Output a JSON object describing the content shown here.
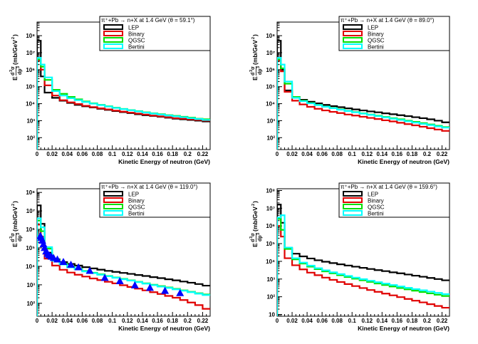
{
  "figure": {
    "x_axis_label": "Kinetic Energy of neutron (GeV)",
    "y_axis_label": "E d³σ / dp³ (mb/GeV²)"
  },
  "chart_data": [
    {
      "type": "line",
      "title": "π⁺+Pb → n+X at 1.4 GeV (θ =  59.1°)",
      "xlabel": "Kinetic Energy of neutron (GeV)",
      "ylabel": "E d³σ / dp³ (mb/GeV²)",
      "xlim": [
        0,
        0.23
      ],
      "ylim_log10": [
        1.3,
        8.8
      ],
      "x_ticks": [
        "0",
        "0.02",
        "0.04",
        "0.06",
        "0.08",
        "0.1",
        "0.12",
        "0.14",
        "0.16",
        "0.18",
        "0.2",
        "0.22"
      ],
      "y_ticks": [
        {
          "exp": 2,
          "label": "10²"
        },
        {
          "exp": 3,
          "label": "10³"
        },
        {
          "exp": 4,
          "label": "10⁴"
        },
        {
          "exp": 5,
          "label": "10⁵"
        },
        {
          "exp": 6,
          "label": "10⁶"
        },
        {
          "exp": 7,
          "label": "10⁷"
        },
        {
          "exp": 8,
          "label": "10⁸"
        }
      ],
      "legend_placement": "top-right",
      "bin_edges": [
        0,
        0.005,
        0.01,
        0.02,
        0.03,
        0.04,
        0.05,
        0.06,
        0.07,
        0.08,
        0.09,
        0.1,
        0.11,
        0.12,
        0.13,
        0.14,
        0.15,
        0.16,
        0.17,
        0.18,
        0.19,
        0.2,
        0.21,
        0.22,
        0.23
      ],
      "series": [
        {
          "name": "LEP",
          "color": "#000000",
          "values": [
            50000000.0,
            400000.0,
            45000.0,
            22000.0,
            15000.0,
            11000.0,
            8500.0,
            7000.0,
            6000.0,
            5000.0,
            4300.0,
            3700.0,
            3200.0,
            2800.0,
            2400.0,
            2100.0,
            1900.0,
            1700.0,
            1500.0,
            1300.0,
            1200.0,
            1100.0,
            1000.0,
            900.0
          ]
        },
        {
          "name": "Binary",
          "color": "#e00000",
          "values": [
            3500000.0,
            1000000.0,
            120000.0,
            30000.0,
            16000.0,
            12000.0,
            9500.0,
            7500.0,
            6300.0,
            5300.0,
            4600.0,
            3900.0,
            3400.0,
            3000.0,
            2600.0,
            2300.0,
            2000.0,
            1800.0,
            1600.0,
            1400.0,
            1300.0,
            1200.0,
            1100.0,
            1000.0
          ]
        },
        {
          "name": "QGSC",
          "color": "#00e000",
          "values": [
            4000000.0,
            1500000.0,
            250000.0,
            65000.0,
            38000.0,
            25000.0,
            18000.0,
            13500.0,
            10500.0,
            8500.0,
            7000.0,
            5800.0,
            4900.0,
            4200.0,
            3600.0,
            3100.0,
            2700.0,
            2400.0,
            2100.0,
            1900.0,
            1700.0,
            1500.0,
            1300.0,
            1200.0
          ]
        },
        {
          "name": "Bertini",
          "color": "#00ffff",
          "values": [
            5000000.0,
            2000000.0,
            350000.0,
            55000.0,
            30000.0,
            21000.0,
            16000.0,
            12500.0,
            10000.0,
            8200.0,
            6800.0,
            5600.0,
            4800.0,
            4100.0,
            3500.0,
            3000.0,
            2600.0,
            2300.0,
            2000.0,
            1800.0,
            1600.0,
            1400.0,
            1250.0,
            1100.0
          ]
        }
      ]
    },
    {
      "type": "line",
      "title": "π⁺+Pb → n+X at 1.4 GeV (θ =  89.0°)",
      "xlabel": "Kinetic Energy of neutron (GeV)",
      "ylabel": "E d³σ / dp³ (mb/GeV²)",
      "xlim": [
        0,
        0.23
      ],
      "ylim_log10": [
        1.3,
        8.8
      ],
      "x_ticks": [
        "0",
        "0.02",
        "0.04",
        "0.06",
        "0.08",
        "0.1",
        "0.12",
        "0.14",
        "0.16",
        "0.18",
        "0.2",
        "0.22"
      ],
      "y_ticks": [
        {
          "exp": 2,
          "label": "10²"
        },
        {
          "exp": 3,
          "label": "10³"
        },
        {
          "exp": 4,
          "label": "10⁴"
        },
        {
          "exp": 5,
          "label": "10⁵"
        },
        {
          "exp": 6,
          "label": "10⁶"
        },
        {
          "exp": 7,
          "label": "10⁷"
        },
        {
          "exp": 8,
          "label": "10⁸"
        }
      ],
      "legend_placement": "top-right",
      "bin_edges": [
        0,
        0.005,
        0.01,
        0.02,
        0.03,
        0.04,
        0.05,
        0.06,
        0.07,
        0.08,
        0.09,
        0.1,
        0.11,
        0.12,
        0.13,
        0.14,
        0.15,
        0.16,
        0.17,
        0.18,
        0.19,
        0.2,
        0.21,
        0.22,
        0.23
      ],
      "series": [
        {
          "name": "LEP",
          "color": "#000000",
          "values": [
            50000000.0,
            1000000.0,
            60000.0,
            25000.0,
            17000.0,
            13000.0,
            10500.0,
            8500.0,
            7200.0,
            6200.0,
            5300.0,
            4600.0,
            4000.0,
            3500.0,
            3100.0,
            2700.0,
            2400.0,
            2100.0,
            1850.0,
            1600.0,
            1400.0,
            1200.0,
            1000.0,
            800.0
          ]
        },
        {
          "name": "Binary",
          "color": "#e00000",
          "values": [
            3500000.0,
            800000.0,
            50000.0,
            15000.0,
            9000.0,
            6500.0,
            5000.0,
            4000.0,
            3300.0,
            2800.0,
            2300.0,
            2000.0,
            1700.0,
            1450.0,
            1250.0,
            1050.0,
            900.0,
            750.0,
            630.0,
            530.0,
            440.0,
            360.0,
            300.0,
            250.0
          ]
        },
        {
          "name": "QGSC",
          "color": "#00e000",
          "values": [
            4000000.0,
            1200000.0,
            150000.0,
            25000.0,
            15000.0,
            11000.0,
            8500.0,
            6800.0,
            5600.0,
            4600.0,
            3800.0,
            3200.0,
            2700.0,
            2300.0,
            1950.0,
            1650.0,
            1400.0,
            1200.0,
            1000.0,
            850.0,
            720.0,
            600.0,
            500.0,
            420.0
          ]
        },
        {
          "name": "Bertini",
          "color": "#00ffff",
          "values": [
            5000000.0,
            2000000.0,
            200000.0,
            22000.0,
            14000.0,
            10500.0,
            8200.0,
            6600.0,
            5400.0,
            4400.0,
            3700.0,
            3100.0,
            2600.0,
            2200.0,
            1850.0,
            1550.0,
            1300.0,
            1100.0,
            920.0,
            770.0,
            650.0,
            550.0,
            460.0,
            390.0
          ]
        }
      ]
    },
    {
      "type": "line",
      "title": "π⁺+Pb → n+X at 1.4 GeV (θ = 119.0°)",
      "xlabel": "Kinetic Energy of neutron (GeV)",
      "ylabel": "E d³σ / dp³ (mb/GeV²)",
      "xlim": [
        0,
        0.23
      ],
      "ylim_log10": [
        1.3,
        8.2
      ],
      "x_ticks": [
        "0",
        "0.02",
        "0.04",
        "0.06",
        "0.08",
        "0.1",
        "0.12",
        "0.14",
        "0.16",
        "0.18",
        "0.2",
        "0.22"
      ],
      "y_ticks": [
        {
          "exp": 2,
          "label": "10²"
        },
        {
          "exp": 3,
          "label": "10³"
        },
        {
          "exp": 4,
          "label": "10⁴"
        },
        {
          "exp": 5,
          "label": "10⁵"
        },
        {
          "exp": 6,
          "label": "10⁶"
        },
        {
          "exp": 7,
          "label": "10⁷"
        },
        {
          "exp": 8,
          "label": "10⁸"
        }
      ],
      "legend_placement": "top-right",
      "bin_edges": [
        0,
        0.005,
        0.01,
        0.02,
        0.03,
        0.04,
        0.05,
        0.06,
        0.07,
        0.08,
        0.09,
        0.1,
        0.11,
        0.12,
        0.13,
        0.14,
        0.15,
        0.16,
        0.17,
        0.18,
        0.19,
        0.2,
        0.21,
        0.22,
        0.23
      ],
      "series": [
        {
          "name": "LEP",
          "color": "#000000",
          "values": [
            20000000.0,
            2000000.0,
            55000.0,
            24000.0,
            17000.0,
            13500.0,
            11000.0,
            9000.0,
            7700.0,
            6600.0,
            5700.0,
            5000.0,
            4400.0,
            3900.0,
            3400.0,
            3000.0,
            2600.0,
            2300.0,
            2000.0,
            1750.0,
            1500.0,
            1300.0,
            1100.0,
            900.0
          ]
        },
        {
          "name": "Binary",
          "color": "#e00000",
          "values": [
            1800000.0,
            400000.0,
            26000.0,
            11000.0,
            6500.0,
            4600.0,
            3500.0,
            2800.0,
            2200.0,
            1800.0,
            1450.0,
            1200.0,
            950.0,
            770.0,
            620.0,
            500.0,
            400.0,
            320.0,
            250.0,
            200.0,
            150.0,
            110.0,
            80.0,
            50.0
          ]
        },
        {
          "name": "QGSC",
          "color": "#00e000",
          "values": [
            3000000.0,
            800000.0,
            90000.0,
            23000.0,
            14000.0,
            9500.0,
            7200.0,
            5600.0,
            4500.0,
            3700.0,
            3000.0,
            2500.0,
            2100.0,
            1750.0,
            1450.0,
            1200.0,
            1000.0,
            850.0,
            720.0,
            600.0,
            500.0,
            420.0,
            350.0,
            300.0
          ]
        },
        {
          "name": "Bertini",
          "color": "#00ffff",
          "values": [
            4000000.0,
            1300000.0,
            110000.0,
            20000.0,
            12500.0,
            8800.0,
            6800.0,
            5300.0,
            4300.0,
            3500.0,
            2900.0,
            2400.0,
            2000.0,
            1700.0,
            1400.0,
            1150.0,
            960.0,
            800.0,
            680.0,
            570.0,
            480.0,
            400.0,
            330.0,
            280.0
          ]
        }
      ],
      "markers": {
        "shape": "triangle",
        "color": "#0000ff",
        "x": [
          0.0045,
          0.0055,
          0.007,
          0.0085,
          0.01,
          0.012,
          0.014,
          0.016,
          0.019,
          0.022,
          0.027,
          0.035,
          0.045,
          0.055,
          0.07,
          0.09,
          0.11,
          0.13,
          0.15,
          0.17,
          0.19
        ],
        "y": [
          450000.0,
          350000.0,
          250000.0,
          160000.0,
          100000.0,
          65000.0,
          48000.0,
          40000.0,
          34000.0,
          29000.0,
          24000.0,
          17500.0,
          12500.0,
          9000.0,
          5800.0,
          2400.0,
          1600.0,
          950.0,
          700.0,
          480.0,
          360.0
        ]
      }
    },
    {
      "type": "line",
      "title": "π⁺+Pb → n+X at 1.4 GeV (θ = 159.6°)",
      "xlabel": "Kinetic Energy of neutron (GeV)",
      "ylabel": "E d³σ / dp³ (mb/GeV²)",
      "xlim": [
        0,
        0.23
      ],
      "ylim_log10": [
        0.9,
        8.1
      ],
      "x_ticks": [
        "0",
        "0.02",
        "0.04",
        "0.06",
        "0.08",
        "0.1",
        "0.12",
        "0.14",
        "0.16",
        "0.18",
        "0.2",
        "0.22"
      ],
      "y_ticks": [
        {
          "exp": 1,
          "label": "10"
        },
        {
          "exp": 2,
          "label": "10²"
        },
        {
          "exp": 3,
          "label": "10³"
        },
        {
          "exp": 4,
          "label": "10⁴"
        },
        {
          "exp": 5,
          "label": "10⁵"
        },
        {
          "exp": 6,
          "label": "10⁶"
        },
        {
          "exp": 7,
          "label": "10⁷"
        },
        {
          "exp": 8,
          "label": "10⁸"
        }
      ],
      "legend_placement": "top-right",
      "bin_edges": [
        0,
        0.005,
        0.01,
        0.02,
        0.03,
        0.04,
        0.05,
        0.06,
        0.07,
        0.08,
        0.09,
        0.1,
        0.11,
        0.12,
        0.13,
        0.14,
        0.15,
        0.16,
        0.17,
        0.18,
        0.19,
        0.2,
        0.21,
        0.22,
        0.23
      ],
      "series": [
        {
          "name": "LEP",
          "color": "#000000",
          "values": [
            16000000.0,
            1500000.0,
            55000.0,
            27000.0,
            19000.0,
            14500.0,
            11500.0,
            9500.0,
            8000.0,
            6800.0,
            5800.0,
            5000.0,
            4300.0,
            3700.0,
            3200.0,
            2800.0,
            2400.0,
            2100.0,
            1800.0,
            1550.0,
            1350.0,
            1150.0,
            1000.0,
            850.0
          ]
        },
        {
          "name": "Binary",
          "color": "#e00000",
          "values": [
            1000000.0,
            250000.0,
            15000.0,
            6000.0,
            3500.0,
            2300.0,
            1650.0,
            1200.0,
            900.0,
            680.0,
            520.0,
            400.0,
            310.0,
            240.0,
            190.0,
            150.0,
            120.0,
            95.0,
            75.0,
            60.0,
            48.0,
            38.0,
            30.0,
            24.0
          ]
        },
        {
          "name": "QGSC",
          "color": "#00e000",
          "values": [
            2500000.0,
            600000.0,
            50000.0,
            13000.0,
            7500.0,
            5000.0,
            3600.0,
            2700.0,
            2100.0,
            1650.0,
            1300.0,
            1050.0,
            850.0,
            690.0,
            560.0,
            460.0,
            380.0,
            310.0,
            260.0,
            220.0,
            185.0,
            155.0,
            130.0,
            110.0
          ]
        },
        {
          "name": "Bertini",
          "color": "#00ffff",
          "values": [
            3000000.0,
            4000000.0,
            60000.0,
            15000.0,
            8500.0,
            5700.0,
            4100.0,
            3100.0,
            2400.0,
            1900.0,
            1500.0,
            1200.0,
            980.0,
            800.0,
            660.0,
            550.0,
            460.0,
            380.0,
            320.0,
            270.0,
            230.0,
            195.0,
            165.0,
            140.0
          ]
        }
      ]
    }
  ]
}
